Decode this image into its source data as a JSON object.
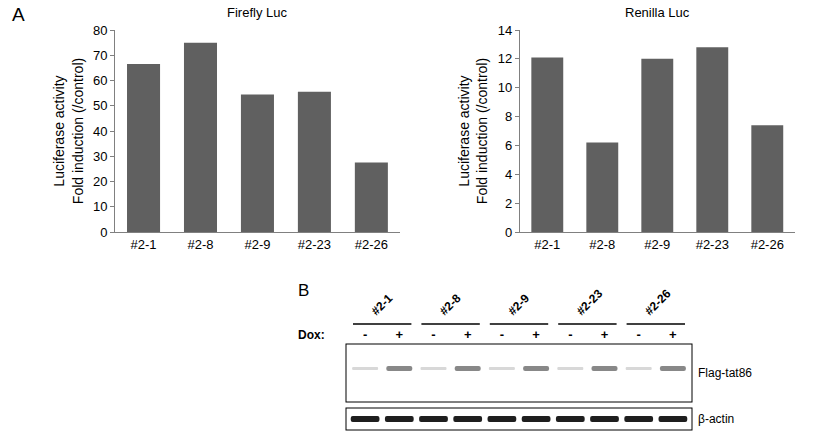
{
  "chart_data": [
    {
      "type": "bar",
      "title": "Firefly Luc",
      "y_label": "Luciferase activity\nFold induction (/control)",
      "categories": [
        "#2-1",
        "#2-8",
        "#2-9",
        "#2-23",
        "#2-26"
      ],
      "values": [
        66.5,
        75,
        54.5,
        55.5,
        27.5
      ],
      "color": "#606060",
      "ylim": [
        0,
        80
      ],
      "yticks": [
        0,
        10,
        20,
        30,
        40,
        50,
        60,
        70,
        80
      ],
      "grid": false
    },
    {
      "type": "bar",
      "title": "Renilla Luc",
      "y_label": "Luciferase activity\nFold induction (/control)",
      "categories": [
        "#2-1",
        "#2-8",
        "#2-9",
        "#2-23",
        "#2-26"
      ],
      "values": [
        12.1,
        6.2,
        12.0,
        12.8,
        7.4
      ],
      "color": "#606060",
      "ylim": [
        0,
        14
      ],
      "yticks": [
        0,
        2,
        4,
        6,
        8,
        10,
        12,
        14
      ],
      "grid": false
    }
  ],
  "figure": {
    "panel_labels": [
      "A",
      "B"
    ],
    "blot": {
      "lanes": [
        "#2-1",
        "#2-8",
        "#2-9",
        "#2-23",
        "#2-26"
      ],
      "treatment_label": "Dox:",
      "conditions": [
        "-",
        "+"
      ],
      "rows": [
        "Flag-tat86",
        "β-actin"
      ]
    }
  }
}
